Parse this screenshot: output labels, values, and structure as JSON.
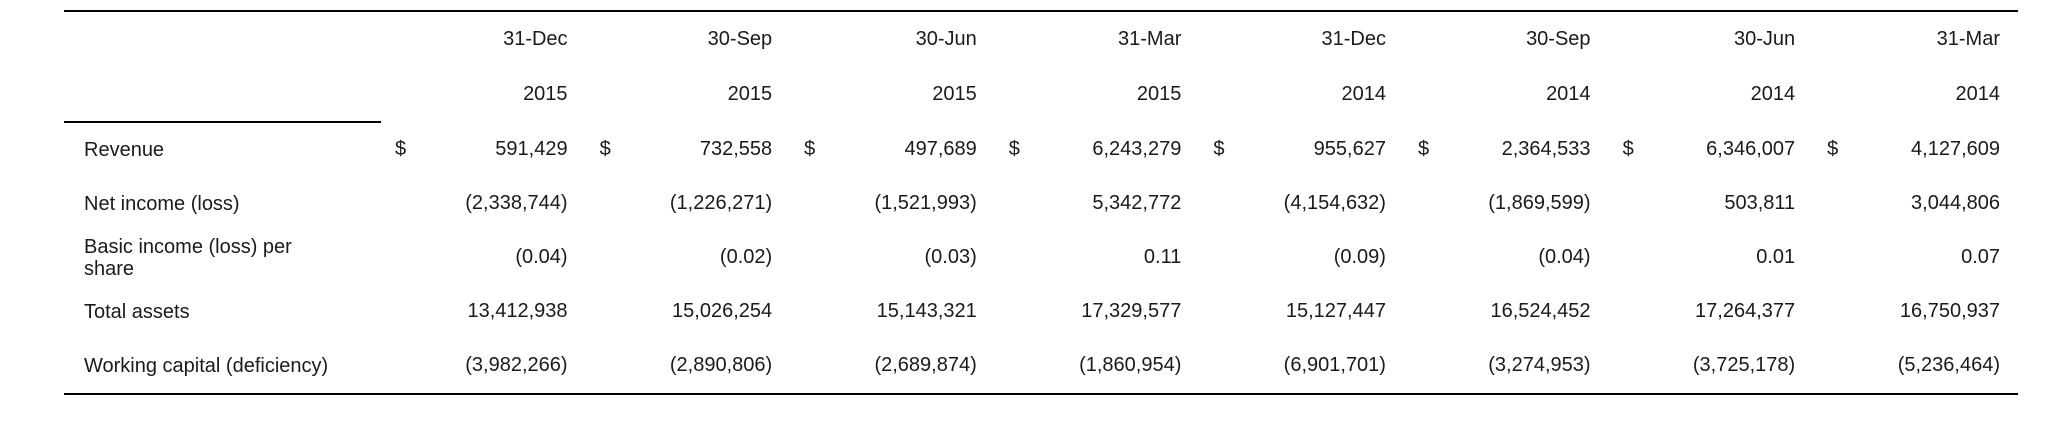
{
  "table": {
    "headers": [
      {
        "month": "31-Dec",
        "year": "2015"
      },
      {
        "month": "30-Sep",
        "year": "2015"
      },
      {
        "month": "30-Jun",
        "year": "2015"
      },
      {
        "month": "31-Mar",
        "year": "2015"
      },
      {
        "month": "31-Dec",
        "year": "2014"
      },
      {
        "month": "30-Sep",
        "year": "2014"
      },
      {
        "month": "30-Jun",
        "year": "2014"
      },
      {
        "month": "31-Mar",
        "year": "2014"
      }
    ],
    "currency_symbol": "$",
    "rows": [
      {
        "label": "Revenue",
        "show_currency": true,
        "values": [
          "591,429",
          "732,558",
          "497,689",
          "6,243,279",
          "955,627",
          "2,364,533",
          "6,346,007",
          "4,127,609"
        ]
      },
      {
        "label": "Net income (loss)",
        "show_currency": false,
        "values": [
          "(2,338,744)",
          "(1,226,271)",
          "(1,521,993)",
          "5,342,772",
          "(4,154,632)",
          "(1,869,599)",
          "503,811",
          "3,044,806"
        ]
      },
      {
        "label": "Basic income (loss) per share",
        "show_currency": false,
        "values": [
          "(0.04)",
          "(0.02)",
          "(0.03)",
          "0.11",
          "(0.09)",
          "(0.04)",
          "0.01",
          "0.07"
        ]
      },
      {
        "label": "Total assets",
        "show_currency": false,
        "values": [
          "13,412,938",
          "15,026,254",
          "15,143,321",
          "17,329,577",
          "15,127,447",
          "16,524,452",
          "17,264,377",
          "16,750,937"
        ]
      },
      {
        "label": "Working capital (deficiency)",
        "show_currency": false,
        "values": [
          "(3,982,266)",
          "(2,890,806)",
          "(2,689,874)",
          "(1,860,954)",
          "(6,901,701)",
          "(3,274,953)",
          "(3,725,178)",
          "(5,236,464)"
        ]
      }
    ]
  }
}
